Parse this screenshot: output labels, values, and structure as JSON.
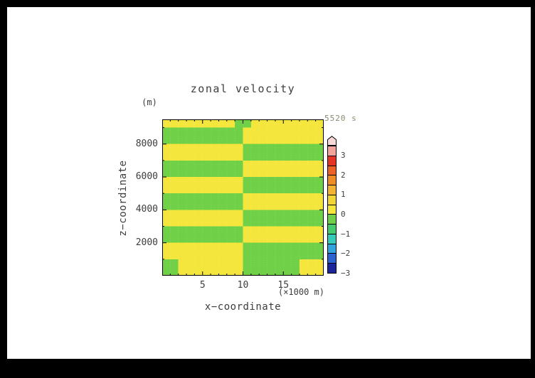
{
  "figure": {
    "title": "zonal velocity",
    "time_label": "5520 s",
    "y_unit_label": "(m)",
    "x_unit_label": "(×1000 m)",
    "xlabel": "x−coordinate",
    "ylabel": "z−coordinate"
  },
  "colors": {
    "background_frame": "#000000",
    "canvas": "#ffffff",
    "text": "#3d3d3d",
    "time_label_text": "#8a8a70",
    "axis": "#000000"
  },
  "chart_data": {
    "type": "heatmap",
    "title": "zonal velocity",
    "xlabel": "x−coordinate",
    "ylabel": "z−coordinate",
    "x_unit": "(×1000 m)",
    "y_unit": "(m)",
    "time": "5520 s",
    "xlim": [
      0,
      20
    ],
    "ylim": [
      0,
      9500
    ],
    "x_ticks": [
      5,
      10,
      15
    ],
    "x_minor_step": 1,
    "y_ticks": [
      2000,
      4000,
      6000,
      8000
    ],
    "y_minor_step": 1000,
    "grid_on": true,
    "legend_position": "colorbar-right",
    "colors": {
      "positive": "#f4e63d",
      "negative": "#70d048"
    },
    "colorbar": {
      "labels": [
        3,
        2,
        1,
        0,
        -1,
        -2,
        -3
      ],
      "range": [
        -3,
        3
      ],
      "segment_step": 0.5,
      "arrow_color": "#f7d9d9",
      "segment_colors_top_to_bottom": [
        "#f2a39b",
        "#e53424",
        "#eb6126",
        "#f08c28",
        "#f2b232",
        "#f2d437",
        "#f4e63d",
        "#70d048",
        "#46cc6e",
        "#36cbb8",
        "#30a4dc",
        "#2b62d0",
        "#1d2398"
      ]
    },
    "grid": {
      "z_step_m": 500,
      "x_step_km": 1,
      "rows_top_to_bottom_z": [
        9500,
        0
      ],
      "values": [
        [
          0.5,
          0.5,
          0.5,
          0.5,
          0.5,
          0.5,
          0.5,
          0.5,
          0.5,
          -0.5,
          -0.5,
          0.5,
          0.5,
          0.5,
          0.5,
          0.5,
          0.5,
          0.5,
          0.5,
          0.5
        ],
        [
          -0.5,
          -0.5,
          -0.5,
          -0.5,
          -0.5,
          -0.5,
          -0.5,
          -0.5,
          -0.5,
          -0.5,
          0.5,
          0.5,
          0.5,
          0.5,
          0.5,
          0.5,
          0.5,
          0.5,
          0.5,
          0.5
        ],
        [
          -0.5,
          -0.5,
          -0.5,
          -0.5,
          -0.5,
          -0.5,
          -0.5,
          -0.5,
          -0.5,
          -0.5,
          0.5,
          0.5,
          0.5,
          0.5,
          0.5,
          0.5,
          0.5,
          0.5,
          0.5,
          0.5
        ],
        [
          0.5,
          0.5,
          0.5,
          0.5,
          0.5,
          0.5,
          0.5,
          0.5,
          0.5,
          0.5,
          -0.5,
          -0.5,
          -0.5,
          -0.5,
          -0.5,
          -0.5,
          -0.5,
          -0.5,
          -0.5,
          -0.5
        ],
        [
          0.5,
          0.5,
          0.5,
          0.5,
          0.5,
          0.5,
          0.5,
          0.5,
          0.5,
          0.5,
          -0.5,
          -0.5,
          -0.5,
          -0.5,
          -0.5,
          -0.5,
          -0.5,
          -0.5,
          -0.5,
          -0.5
        ],
        [
          -0.5,
          -0.5,
          -0.5,
          -0.5,
          -0.5,
          -0.5,
          -0.5,
          -0.5,
          -0.5,
          -0.5,
          0.5,
          0.5,
          0.5,
          0.5,
          0.5,
          0.5,
          0.5,
          0.5,
          0.5,
          0.5
        ],
        [
          -0.5,
          -0.5,
          -0.5,
          -0.5,
          -0.5,
          -0.5,
          -0.5,
          -0.5,
          -0.5,
          -0.5,
          0.5,
          0.5,
          0.5,
          0.5,
          0.5,
          0.5,
          0.5,
          0.5,
          0.5,
          0.5
        ],
        [
          0.5,
          0.5,
          0.5,
          0.5,
          0.5,
          0.5,
          0.5,
          0.5,
          0.5,
          0.5,
          -0.5,
          -0.5,
          -0.5,
          -0.5,
          -0.5,
          -0.5,
          -0.5,
          -0.5,
          -0.5,
          -0.5
        ],
        [
          0.5,
          0.5,
          0.5,
          0.5,
          0.5,
          0.5,
          0.5,
          0.5,
          0.5,
          0.5,
          -0.5,
          -0.5,
          -0.5,
          -0.5,
          -0.5,
          -0.5,
          -0.5,
          -0.5,
          -0.5,
          -0.5
        ],
        [
          -0.5,
          -0.5,
          -0.5,
          -0.5,
          -0.5,
          -0.5,
          -0.5,
          -0.5,
          -0.5,
          -0.5,
          0.5,
          0.5,
          0.5,
          0.5,
          0.5,
          0.5,
          0.5,
          0.5,
          0.5,
          0.5
        ],
        [
          -0.5,
          -0.5,
          -0.5,
          -0.5,
          -0.5,
          -0.5,
          -0.5,
          -0.5,
          -0.5,
          -0.5,
          0.5,
          0.5,
          0.5,
          0.5,
          0.5,
          0.5,
          0.5,
          0.5,
          0.5,
          0.5
        ],
        [
          0.5,
          0.5,
          0.5,
          0.5,
          0.5,
          0.5,
          0.5,
          0.5,
          0.5,
          0.5,
          -0.5,
          -0.5,
          -0.5,
          -0.5,
          -0.5,
          -0.5,
          -0.5,
          -0.5,
          -0.5,
          -0.5
        ],
        [
          0.5,
          0.5,
          0.5,
          0.5,
          0.5,
          0.5,
          0.5,
          0.5,
          0.5,
          0.5,
          -0.5,
          -0.5,
          -0.5,
          -0.5,
          -0.5,
          -0.5,
          -0.5,
          -0.5,
          -0.5,
          -0.5
        ],
        [
          -0.5,
          -0.5,
          -0.5,
          -0.5,
          -0.5,
          -0.5,
          -0.5,
          -0.5,
          -0.5,
          -0.5,
          0.5,
          0.5,
          0.5,
          0.5,
          0.5,
          0.5,
          0.5,
          0.5,
          0.5,
          0.5
        ],
        [
          -0.5,
          -0.5,
          -0.5,
          -0.5,
          -0.5,
          -0.5,
          -0.5,
          -0.5,
          -0.5,
          -0.5,
          0.5,
          0.5,
          0.5,
          0.5,
          0.5,
          0.5,
          0.5,
          0.5,
          0.5,
          0.5
        ],
        [
          0.5,
          0.5,
          0.5,
          0.5,
          0.5,
          0.5,
          0.5,
          0.5,
          0.5,
          0.5,
          -0.5,
          -0.5,
          -0.5,
          -0.5,
          -0.5,
          -0.5,
          -0.5,
          -0.5,
          -0.5,
          -0.5
        ],
        [
          0.5,
          0.5,
          0.5,
          0.5,
          0.5,
          0.5,
          0.5,
          0.5,
          0.5,
          0.5,
          -0.5,
          -0.5,
          -0.5,
          -0.5,
          -0.5,
          -0.5,
          -0.5,
          -0.5,
          -0.5,
          -0.5
        ],
        [
          -0.5,
          -0.5,
          0.5,
          0.5,
          0.5,
          0.5,
          0.5,
          0.5,
          0.5,
          0.5,
          -0.5,
          -0.5,
          -0.5,
          -0.5,
          -0.5,
          -0.5,
          -0.5,
          0.5,
          0.5,
          0.5
        ],
        [
          -0.5,
          -0.5,
          0.5,
          0.5,
          0.5,
          0.5,
          0.5,
          0.5,
          0.5,
          0.5,
          -0.5,
          -0.5,
          -0.5,
          -0.5,
          -0.5,
          -0.5,
          -0.5,
          0.5,
          0.5,
          0.5
        ]
      ]
    }
  }
}
